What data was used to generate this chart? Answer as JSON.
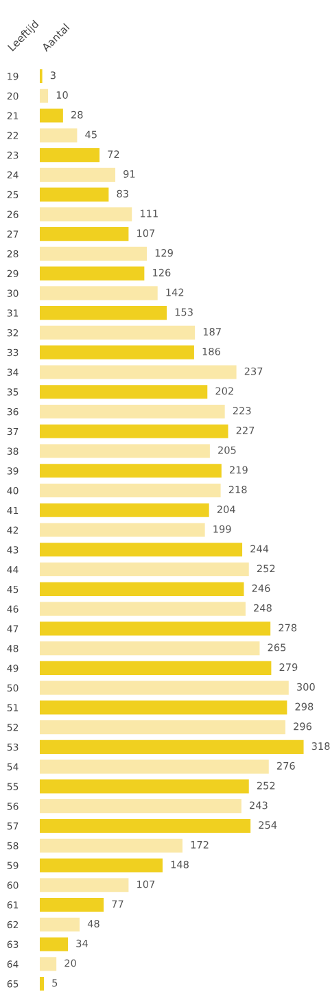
{
  "chart_data": {
    "type": "bar",
    "orientation": "horizontal",
    "ylabel": "Leeftijd",
    "xlabel": "Aantal",
    "categories": [
      "19",
      "20",
      "21",
      "22",
      "23",
      "24",
      "25",
      "26",
      "27",
      "28",
      "29",
      "30",
      "31",
      "32",
      "33",
      "34",
      "35",
      "36",
      "37",
      "38",
      "39",
      "40",
      "41",
      "42",
      "43",
      "44",
      "45",
      "46",
      "47",
      "48",
      "49",
      "50",
      "51",
      "52",
      "53",
      "54",
      "55",
      "56",
      "57",
      "58",
      "59",
      "60",
      "61",
      "62",
      "63",
      "64",
      "65"
    ],
    "values": [
      3,
      10,
      28,
      45,
      72,
      91,
      83,
      111,
      107,
      129,
      126,
      142,
      153,
      187,
      186,
      237,
      202,
      223,
      227,
      205,
      219,
      218,
      204,
      199,
      244,
      252,
      246,
      248,
      278,
      265,
      279,
      300,
      298,
      296,
      318,
      276,
      252,
      243,
      254,
      172,
      148,
      107,
      77,
      48,
      34,
      20,
      5
    ],
    "colors": [
      "#f0d020",
      "#fae8a8",
      "#f0d020",
      "#fae8a8",
      "#f0d020",
      "#fae8a8",
      "#f0d020",
      "#fae8a8",
      "#f0d020",
      "#fae8a8",
      "#f0d020",
      "#fae8a8",
      "#f0d020",
      "#fae8a8",
      "#f0d020",
      "#fae8a8",
      "#f0d020",
      "#fae8a8",
      "#f0d020",
      "#fae8a8",
      "#f0d020",
      "#fae8a8",
      "#f0d020",
      "#fae8a8",
      "#f0d020",
      "#fae8a8",
      "#f0d020",
      "#fae8a8",
      "#f0d020",
      "#fae8a8",
      "#f0d020",
      "#fae8a8",
      "#f0d020",
      "#fae8a8",
      "#f0d020",
      "#fae8a8",
      "#f0d020",
      "#fae8a8",
      "#f0d020",
      "#fae8a8",
      "#f0d020",
      "#fae8a8",
      "#f0d020",
      "#fae8a8",
      "#f0d020",
      "#fae8a8",
      "#f0d020"
    ],
    "data_labels": true,
    "grid": false,
    "legend": false
  }
}
